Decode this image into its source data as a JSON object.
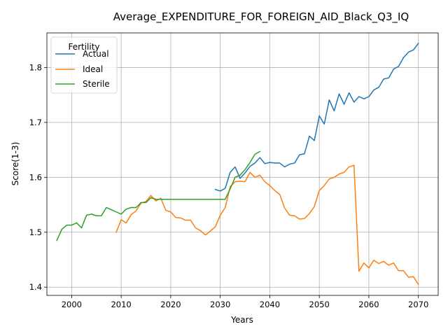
{
  "chart_data": {
    "type": "line",
    "title": "Average_EXPENDITURE_FOR_FOREIGN_AID_Black_Q3_IQ",
    "xlabel": "Years",
    "ylabel": "Score(1-3)",
    "xlim": [
      1995,
      2074
    ],
    "ylim": [
      1.385,
      1.863
    ],
    "x_ticks": [
      2000,
      2010,
      2020,
      2030,
      2040,
      2050,
      2060,
      2070
    ],
    "y_ticks": [
      1.4,
      1.5,
      1.6,
      1.7,
      1.8
    ],
    "x_tick_labels": [
      "2000",
      "2010",
      "2020",
      "2030",
      "2040",
      "2050",
      "2060",
      "2070"
    ],
    "y_tick_labels": [
      "1.4",
      "1.5",
      "1.6",
      "1.7",
      "1.8"
    ],
    "grid": true,
    "legend": {
      "title": "Fertility",
      "position": "top-left",
      "labels": [
        "Actual",
        "Ideal",
        "Sterile"
      ]
    },
    "series": [
      {
        "name": "Actual",
        "color": "#1f77b4",
        "x": [
          2029,
          2030,
          2031,
          2032,
          2033,
          2034,
          2035,
          2036,
          2037,
          2038,
          2039,
          2040,
          2041,
          2042,
          2043,
          2044,
          2045,
          2046,
          2047,
          2048,
          2049,
          2050,
          2051,
          2052,
          2053,
          2054,
          2055,
          2056,
          2057,
          2058,
          2059,
          2060,
          2061,
          2062,
          2063,
          2064,
          2065,
          2066,
          2067,
          2068,
          2069,
          2070
        ],
        "y": [
          1.578,
          1.575,
          1.58,
          1.609,
          1.619,
          1.598,
          1.608,
          1.62,
          1.626,
          1.636,
          1.625,
          1.627,
          1.626,
          1.626,
          1.619,
          1.624,
          1.626,
          1.641,
          1.643,
          1.675,
          1.667,
          1.712,
          1.697,
          1.741,
          1.721,
          1.752,
          1.733,
          1.754,
          1.737,
          1.747,
          1.743,
          1.747,
          1.759,
          1.764,
          1.779,
          1.781,
          1.797,
          1.802,
          1.818,
          1.828,
          1.832,
          1.844
        ]
      },
      {
        "name": "Ideal",
        "color": "#ff7f0e",
        "x": [
          2009,
          2010,
          2011,
          2012,
          2013,
          2014,
          2015,
          2016,
          2017,
          2018,
          2019,
          2020,
          2021,
          2022,
          2023,
          2024,
          2025,
          2026,
          2027,
          2028,
          2029,
          2030,
          2031,
          2032,
          2033,
          2034,
          2035,
          2036,
          2037,
          2038,
          2039,
          2040,
          2041,
          2042,
          2043,
          2044,
          2045,
          2046,
          2047,
          2048,
          2049,
          2050,
          2051,
          2052,
          2053,
          2054,
          2055,
          2056,
          2057,
          2058,
          2059,
          2060,
          2061,
          2062,
          2063,
          2064,
          2065,
          2066,
          2067,
          2068,
          2069,
          2070
        ],
        "y": [
          1.5,
          1.523,
          1.517,
          1.532,
          1.539,
          1.553,
          1.556,
          1.567,
          1.557,
          1.562,
          1.54,
          1.537,
          1.527,
          1.526,
          1.522,
          1.522,
          1.508,
          1.503,
          1.495,
          1.502,
          1.51,
          1.531,
          1.545,
          1.583,
          1.592,
          1.593,
          1.592,
          1.609,
          1.6,
          1.604,
          1.592,
          1.585,
          1.576,
          1.569,
          1.544,
          1.531,
          1.53,
          1.524,
          1.525,
          1.534,
          1.547,
          1.576,
          1.585,
          1.597,
          1.6,
          1.606,
          1.609,
          1.619,
          1.622,
          1.429,
          1.444,
          1.435,
          1.449,
          1.443,
          1.447,
          1.44,
          1.444,
          1.43,
          1.43,
          1.418,
          1.419,
          1.405
        ]
      },
      {
        "name": "Sterile",
        "color": "#2ca02c",
        "x": [
          1997,
          1998,
          1999,
          2000,
          2001,
          2002,
          2003,
          2004,
          2005,
          2006,
          2007,
          2008,
          2009,
          2010,
          2011,
          2012,
          2013,
          2014,
          2015,
          2016,
          2017,
          2018,
          2019,
          2020,
          2021,
          2022,
          2023,
          2024,
          2025,
          2026,
          2027,
          2028,
          2029,
          2030,
          2031,
          2032,
          2033,
          2034,
          2035,
          2036,
          2037,
          2038
        ],
        "y": [
          1.485,
          1.505,
          1.513,
          1.513,
          1.517,
          1.508,
          1.531,
          1.533,
          1.53,
          1.53,
          1.545,
          1.541,
          1.537,
          1.533,
          1.542,
          1.545,
          1.545,
          1.554,
          1.554,
          1.563,
          1.56,
          1.56,
          1.56,
          1.56,
          1.56,
          1.56,
          1.56,
          1.56,
          1.56,
          1.56,
          1.56,
          1.56,
          1.56,
          1.56,
          1.56,
          1.579,
          1.6,
          1.604,
          1.614,
          1.627,
          1.642,
          1.647
        ]
      }
    ]
  }
}
